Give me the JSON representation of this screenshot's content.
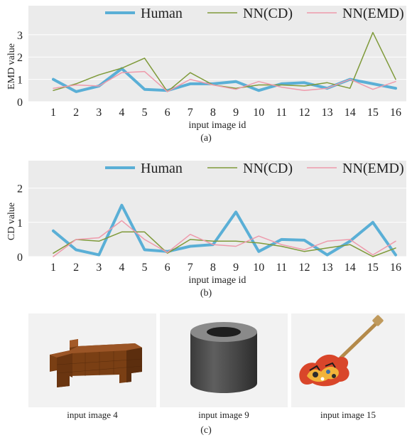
{
  "chart_data": [
    {
      "type": "line",
      "id": "a",
      "caption": "(a)",
      "xlabel": "input image id",
      "ylabel": "EMD value",
      "ylim": [
        0,
        4.3
      ],
      "yticks": [
        0,
        1,
        2,
        3
      ],
      "x": [
        1,
        2,
        3,
        4,
        5,
        6,
        7,
        8,
        9,
        10,
        11,
        12,
        13,
        14,
        15,
        16
      ],
      "grid": true,
      "legend": "top",
      "series": [
        {
          "name": "Human",
          "color": "#5aafd6",
          "width": 4,
          "values": [
            1.0,
            0.45,
            0.7,
            1.48,
            0.55,
            0.5,
            0.8,
            0.8,
            0.9,
            0.5,
            0.8,
            0.85,
            0.6,
            1.0,
            0.8,
            0.6
          ]
        },
        {
          "name": "NN(CD)",
          "color": "#7f9a3a",
          "width": 1.5,
          "values": [
            0.5,
            0.8,
            1.2,
            1.5,
            1.95,
            0.45,
            1.3,
            0.75,
            0.6,
            0.75,
            0.75,
            0.7,
            0.85,
            0.6,
            3.1,
            1.0
          ]
        },
        {
          "name": "NN(EMD)",
          "color": "#ee9aab",
          "width": 1.5,
          "values": [
            0.6,
            0.75,
            0.7,
            1.3,
            1.35,
            0.45,
            1.0,
            0.75,
            0.55,
            0.9,
            0.65,
            0.5,
            0.6,
            1.0,
            0.55,
            0.9
          ]
        }
      ]
    },
    {
      "type": "line",
      "id": "b",
      "caption": "(b)",
      "xlabel": "input image id",
      "ylabel": "CD value",
      "ylim": [
        0,
        2.8
      ],
      "yticks": [
        0,
        1,
        2
      ],
      "x": [
        1,
        2,
        3,
        4,
        5,
        6,
        7,
        8,
        9,
        10,
        11,
        12,
        13,
        14,
        15,
        16
      ],
      "grid": true,
      "legend": "top",
      "series": [
        {
          "name": "Human",
          "color": "#5aafd6",
          "width": 4,
          "values": [
            0.75,
            0.2,
            0.05,
            1.5,
            0.2,
            0.15,
            0.3,
            0.35,
            1.3,
            0.15,
            0.5,
            0.48,
            0.05,
            0.45,
            1.0,
            0.05
          ]
        },
        {
          "name": "NN(CD)",
          "color": "#7f9a3a",
          "width": 1.5,
          "values": [
            0.1,
            0.5,
            0.45,
            0.72,
            0.72,
            0.1,
            0.5,
            0.45,
            0.45,
            0.4,
            0.3,
            0.15,
            0.25,
            0.35,
            0.0,
            0.25
          ]
        },
        {
          "name": "NN(EMD)",
          "color": "#ee9aab",
          "width": 1.5,
          "values": [
            0.0,
            0.5,
            0.55,
            1.05,
            0.5,
            0.12,
            0.65,
            0.35,
            0.3,
            0.6,
            0.35,
            0.2,
            0.45,
            0.5,
            0.05,
            0.45
          ]
        }
      ]
    }
  ],
  "figure_c": {
    "caption": "(c)",
    "thumbnails": [
      {
        "label": "input image 4",
        "icon": "wooden-desk-voxel"
      },
      {
        "label": "input image 9",
        "icon": "gray-cylinder-ring"
      },
      {
        "label": "input image 15",
        "icon": "painted-electric-guitar"
      }
    ]
  }
}
